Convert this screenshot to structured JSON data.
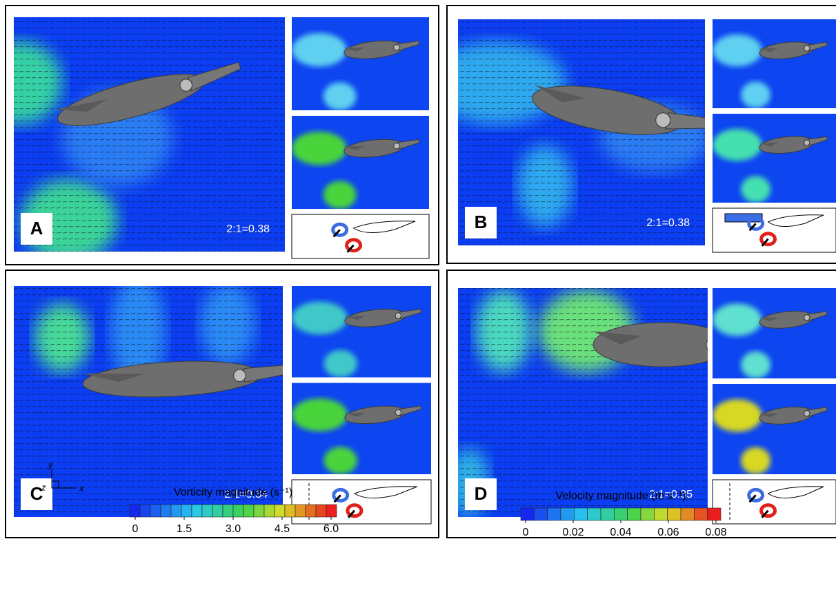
{
  "panels": [
    {
      "label": "A",
      "ratio": "2:1=0.38"
    },
    {
      "label": "B",
      "ratio": "2:1=0.38"
    },
    {
      "label": "C",
      "ratio": "2:1=0.34"
    },
    {
      "label": "D",
      "ratio": "2:1=0.35"
    }
  ],
  "axes_icon": {
    "y": "y",
    "z": "z",
    "x": "x"
  },
  "vorticity_colorbar": {
    "title": "Vorticity magnitude (s⁻¹)",
    "lim": [
      0,
      6
    ],
    "ticks": [
      0,
      1.5,
      {
        "value": 3,
        "label": "3.0"
      },
      4.5,
      {
        "value": 6,
        "label": "6.0"
      }
    ]
  },
  "velocity_colorbar": {
    "title": "Velocity magnitude (m s⁻¹)",
    "lim": [
      0,
      0.08
    ],
    "ticks": [
      0,
      0.02,
      0.04,
      0.06,
      0.08
    ]
  }
}
